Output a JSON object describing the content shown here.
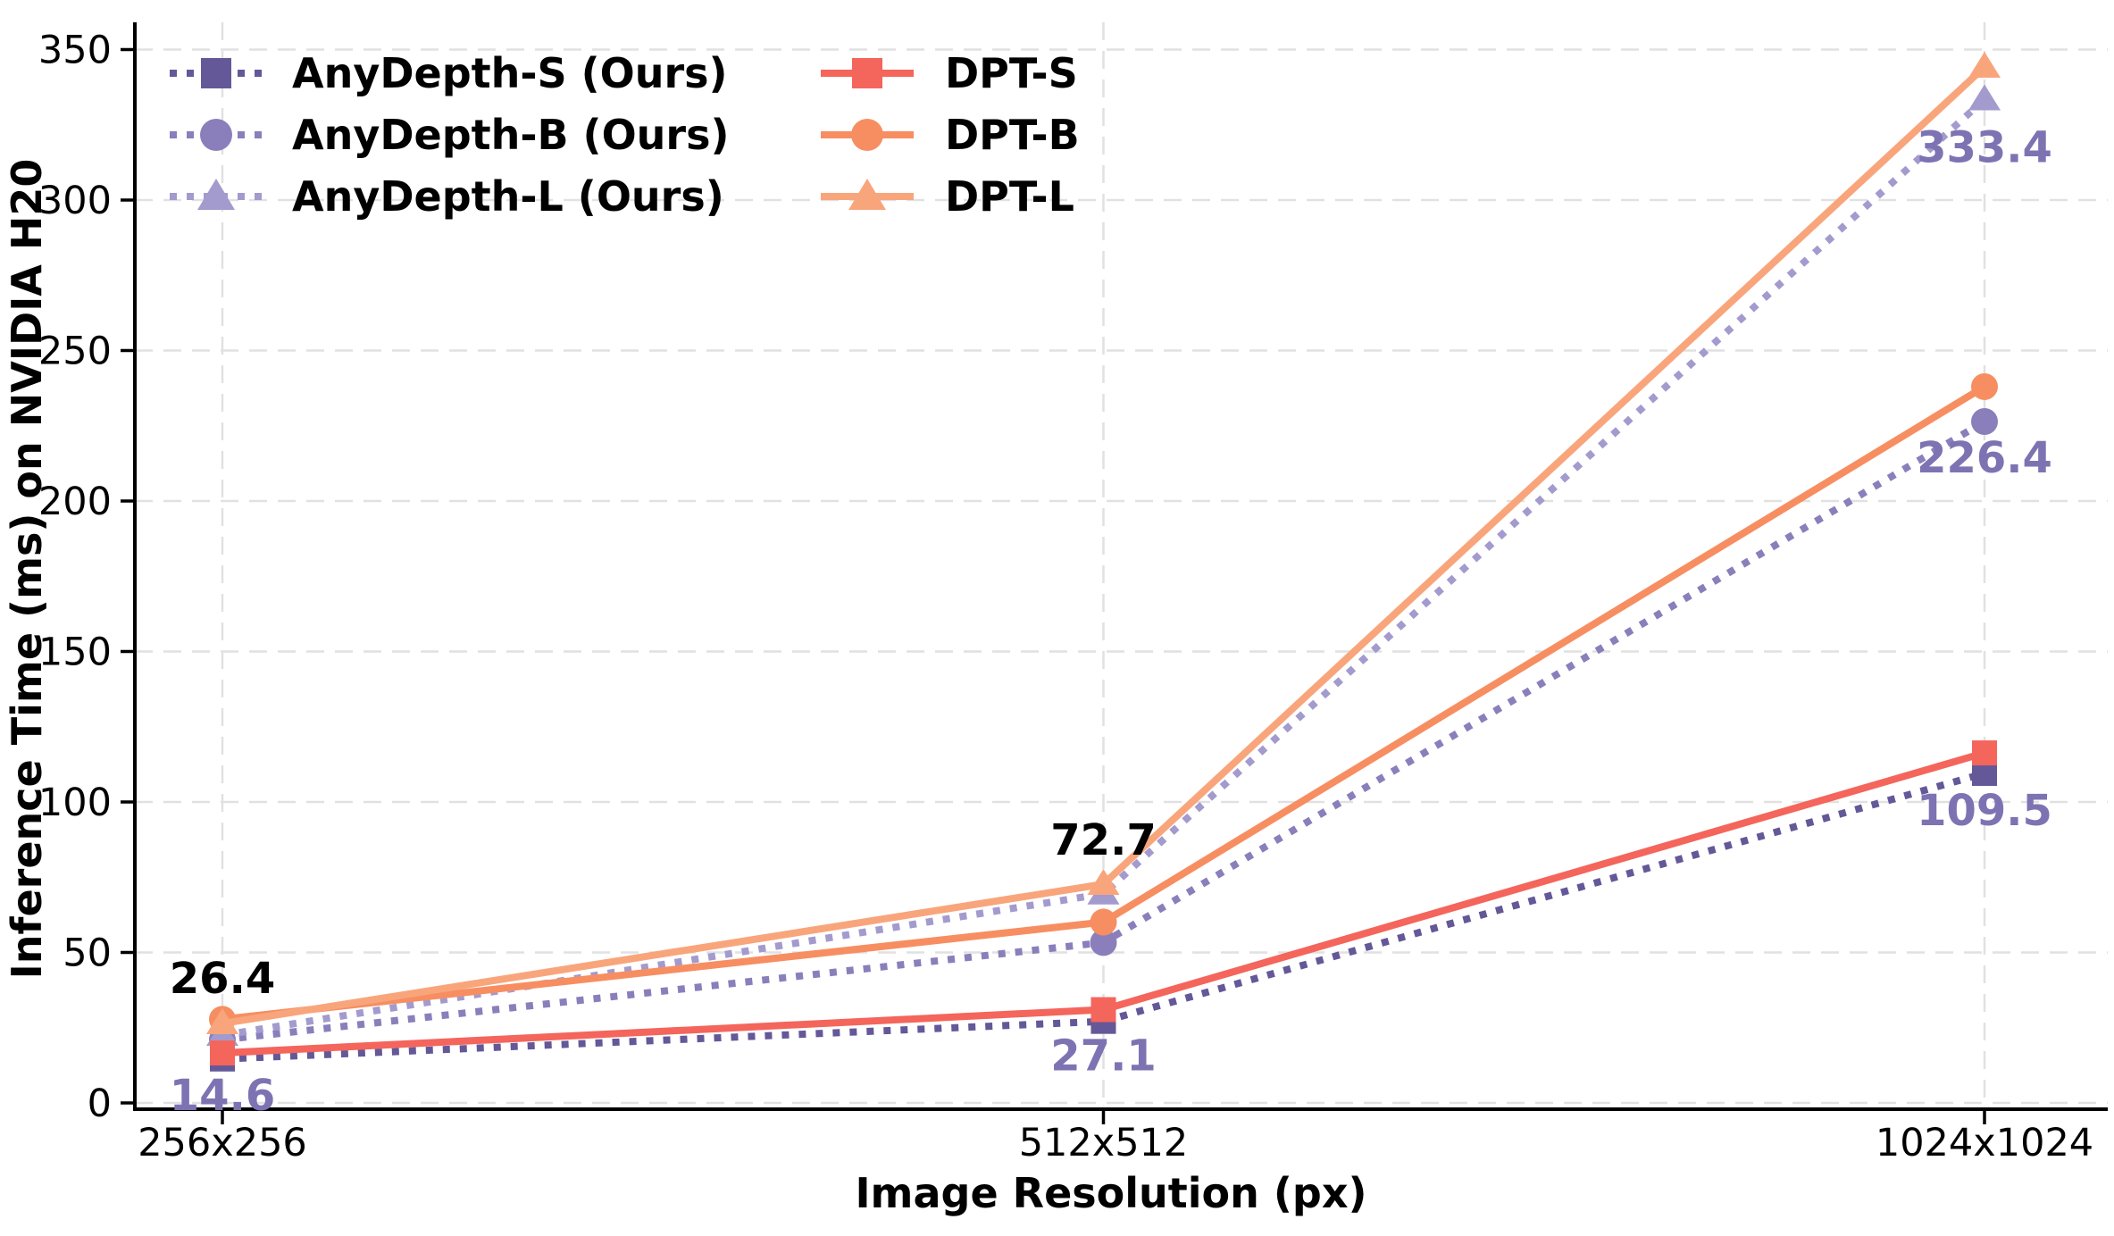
{
  "chart_data": {
    "type": "line",
    "title": "",
    "xlabel": "Image Resolution (px)",
    "ylabel": "Inference Time (ms) on NVIDIA H20",
    "categories": [
      "256x256",
      "512x512",
      "1024x1024"
    ],
    "y_ticks": [
      0,
      50,
      100,
      150,
      200,
      250,
      300,
      350
    ],
    "ylim": [
      0,
      350
    ],
    "grid": "dashed",
    "legend_position": "upper-left-two-columns-no-frame",
    "series": [
      {
        "name": "AnyDepth-S (Ours)",
        "line_style": "dotted",
        "marker": "square",
        "color": "#645898",
        "values": [
          14.6,
          27.1,
          109.5
        ]
      },
      {
        "name": "AnyDepth-B (Ours)",
        "line_style": "dotted",
        "marker": "circle",
        "color": "#8a7fbb",
        "values": [
          21.0,
          53.3,
          226.4
        ]
      },
      {
        "name": "AnyDepth-L (Ours)",
        "line_style": "dotted",
        "marker": "triangle",
        "color": "#a39ace",
        "values": [
          22.5,
          69.5,
          333.4
        ]
      },
      {
        "name": "DPT-S",
        "line_style": "solid",
        "marker": "square",
        "color": "#f4655c",
        "values": [
          16.6,
          31.0,
          116.3
        ]
      },
      {
        "name": "DPT-B",
        "line_style": "solid",
        "marker": "circle",
        "color": "#f78e61",
        "values": [
          27.8,
          60.1,
          238.0
        ]
      },
      {
        "name": "DPT-L",
        "line_style": "solid",
        "marker": "triangle",
        "color": "#f9a57c",
        "values": [
          26.4,
          72.7,
          344.2
        ]
      }
    ],
    "annotations": [
      {
        "text": "26.4",
        "series_index": 5,
        "point_index": 0,
        "dy": -50,
        "color": "#000000"
      },
      {
        "text": "72.7",
        "series_index": 5,
        "point_index": 1,
        "dy": -49,
        "color": "#000000"
      },
      {
        "text": "14.6",
        "series_index": 0,
        "point_index": 0,
        "dy": 41,
        "color": "#7e73b2"
      },
      {
        "text": "27.1",
        "series_index": 0,
        "point_index": 1,
        "dy": 39,
        "color": "#7e73b2"
      },
      {
        "text": "109.5",
        "series_index": 0,
        "point_index": 2,
        "dy": 42,
        "color": "#7e73b2"
      },
      {
        "text": "226.4",
        "series_index": 1,
        "point_index": 2,
        "dy": 41,
        "color": "#7e73b2"
      },
      {
        "text": "333.4",
        "series_index": 2,
        "point_index": 2,
        "dy": 54,
        "color": "#7e73b2"
      }
    ],
    "style_colors": {
      "grid": "#e1e1e1",
      "axis": "#000000",
      "background": "#ffffff"
    }
  }
}
